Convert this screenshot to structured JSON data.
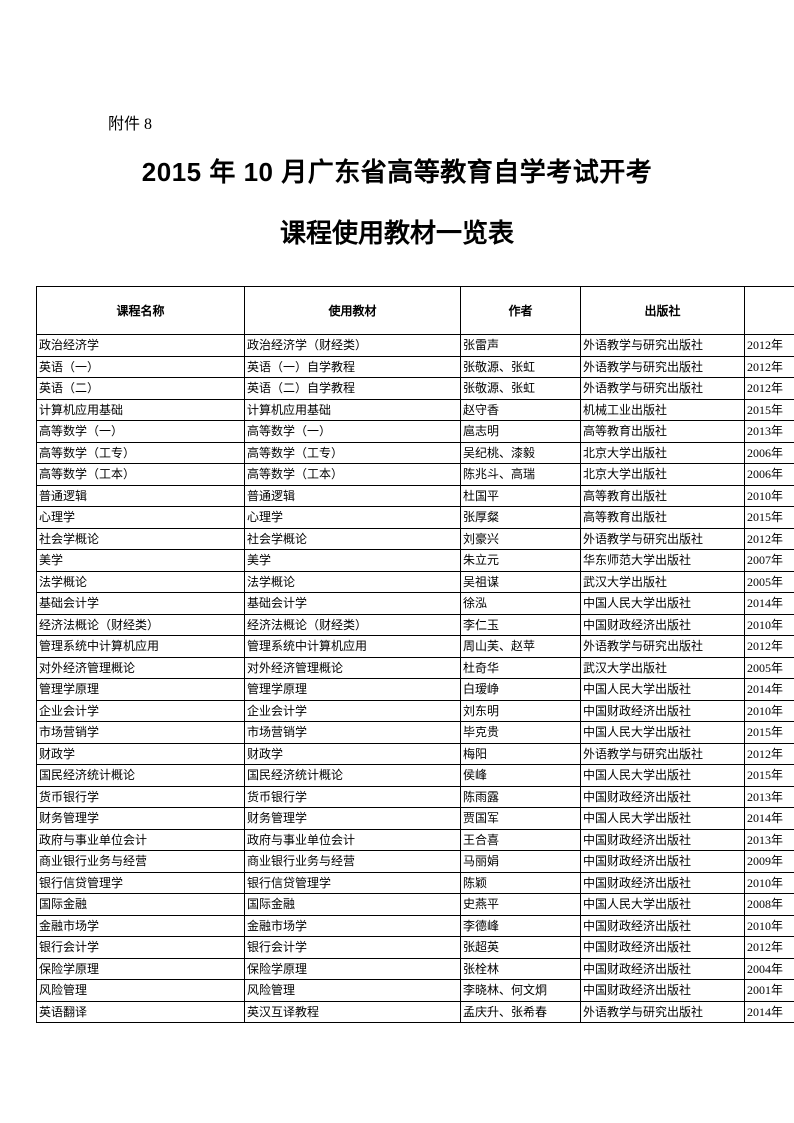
{
  "attachment_label": "附件 8",
  "title_line1": "2015 年 10 月广东省高等教育自学考试开考",
  "title_line2": "课程使用教材一览表",
  "table": {
    "columns": [
      "课程名称",
      "使用教材",
      "作者",
      "出版社",
      ""
    ],
    "rows": [
      [
        "政治经济学",
        "政治经济学（财经类）",
        "张雷声",
        "外语教学与研究出版社",
        "2012年"
      ],
      [
        "英语（一）",
        "英语（一）自学教程",
        "张敬源、张虹",
        "外语教学与研究出版社",
        "2012年"
      ],
      [
        "英语（二）",
        "英语（二）自学教程",
        "张敬源、张虹",
        "外语教学与研究出版社",
        "2012年"
      ],
      [
        "计算机应用基础",
        "计算机应用基础",
        "赵守香",
        "机械工业出版社",
        "2015年"
      ],
      [
        "高等数学（一）",
        "高等数学（一）",
        "扈志明",
        "高等教育出版社",
        "2013年"
      ],
      [
        "高等数学（工专）",
        "高等数学（工专）",
        "吴纪桃、漆毅",
        "北京大学出版社",
        "2006年"
      ],
      [
        "高等数学（工本）",
        "高等数学（工本）",
        "陈兆斗、高瑞",
        "北京大学出版社",
        "2006年"
      ],
      [
        "普通逻辑",
        "普通逻辑",
        "杜国平",
        "高等教育出版社",
        "2010年"
      ],
      [
        "心理学",
        "心理学",
        "张厚粲",
        "高等教育出版社",
        "2015年"
      ],
      [
        "社会学概论",
        "社会学概论",
        "刘豪兴",
        "外语教学与研究出版社",
        "2012年"
      ],
      [
        "美学",
        "美学",
        "朱立元",
        "华东师范大学出版社",
        "2007年"
      ],
      [
        "法学概论",
        "法学概论",
        "吴祖谋",
        "武汉大学出版社",
        "2005年"
      ],
      [
        "基础会计学",
        "基础会计学",
        "徐泓",
        "中国人民大学出版社",
        "2014年"
      ],
      [
        "经济法概论（财经类）",
        "经济法概论（财经类）",
        "李仁玉",
        "中国财政经济出版社",
        "2010年"
      ],
      [
        "管理系统中计算机应用",
        "管理系统中计算机应用",
        "周山芙、赵苹",
        "外语教学与研究出版社",
        "2012年"
      ],
      [
        "对外经济管理概论",
        "对外经济管理概论",
        "杜奇华",
        "武汉大学出版社",
        "2005年"
      ],
      [
        "管理学原理",
        "管理学原理",
        "白瑷峥",
        "中国人民大学出版社",
        "2014年"
      ],
      [
        "企业会计学",
        "企业会计学",
        "刘东明",
        "中国财政经济出版社",
        "2010年"
      ],
      [
        "市场营销学",
        "市场营销学",
        "毕克贵",
        "中国人民大学出版社",
        "2015年"
      ],
      [
        "财政学",
        "财政学",
        "梅阳",
        "外语教学与研究出版社",
        "2012年"
      ],
      [
        "国民经济统计概论",
        "国民经济统计概论",
        "侯峰",
        "中国人民大学出版社",
        "2015年"
      ],
      [
        "货币银行学",
        "货币银行学",
        "陈雨露",
        "中国财政经济出版社",
        "2013年"
      ],
      [
        "财务管理学",
        "财务管理学",
        "贾国军",
        "中国人民大学出版社",
        "2014年"
      ],
      [
        "政府与事业单位会计",
        "政府与事业单位会计",
        "王合喜",
        "中国财政经济出版社",
        "2013年"
      ],
      [
        "商业银行业务与经营",
        "商业银行业务与经营",
        "马丽娟",
        "中国财政经济出版社",
        "2009年"
      ],
      [
        "银行信贷管理学",
        "银行信贷管理学",
        "陈颖",
        "中国财政经济出版社",
        "2010年"
      ],
      [
        "国际金融",
        "国际金融",
        "史燕平",
        "中国人民大学出版社",
        "2008年"
      ],
      [
        "金融市场学",
        "金融市场学",
        "李德峰",
        "中国财政经济出版社",
        "2010年"
      ],
      [
        "银行会计学",
        "银行会计学",
        "张超英",
        "中国财政经济出版社",
        "2012年"
      ],
      [
        "保险学原理",
        "保险学原理",
        "张栓林",
        "中国财政经济出版社",
        "2004年"
      ],
      [
        "风险管理",
        "风险管理",
        "李晓林、何文炯",
        "中国财政经济出版社",
        "2001年"
      ],
      [
        "英语翻译",
        "英汉互译教程",
        "孟庆升、张希春",
        "外语教学与研究出版社",
        "2014年"
      ]
    ]
  }
}
